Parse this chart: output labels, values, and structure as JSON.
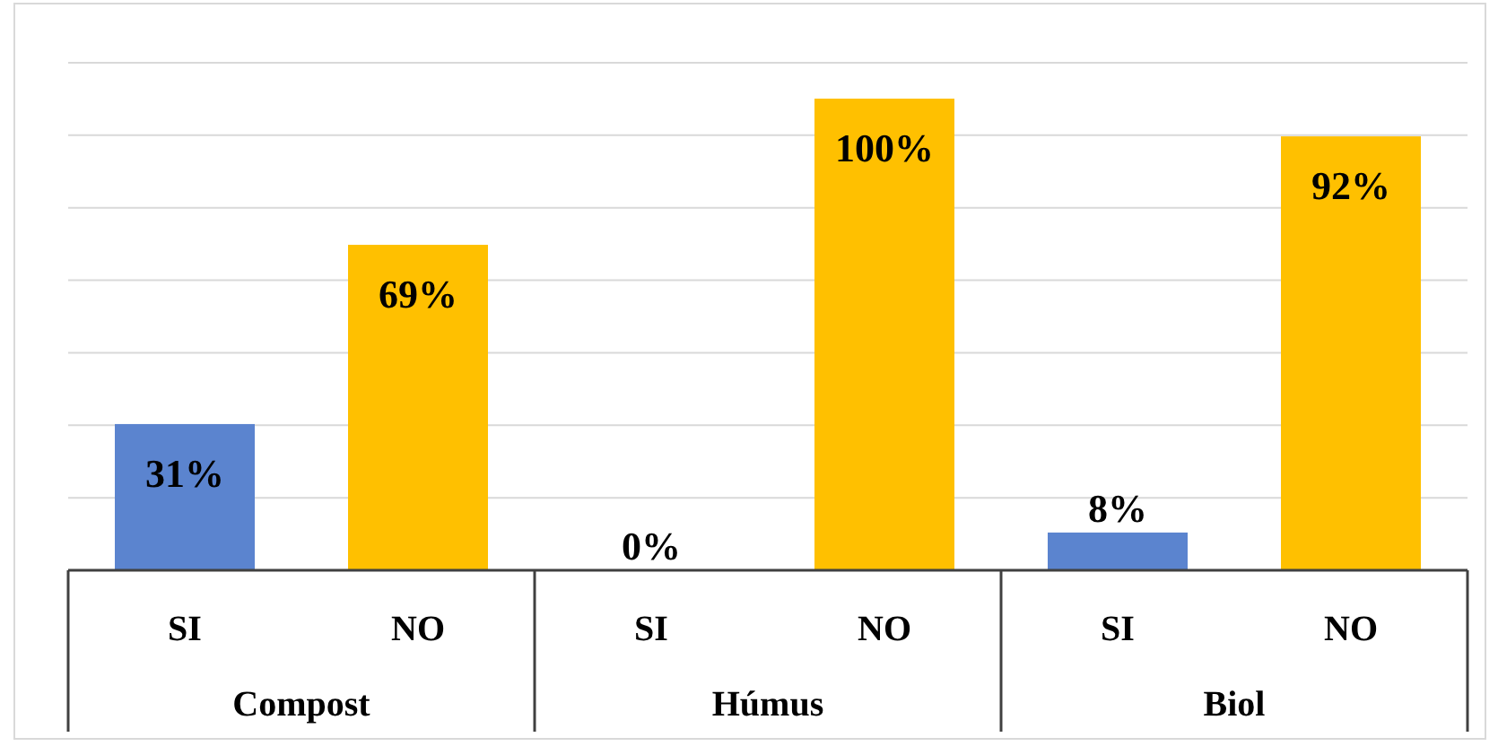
{
  "chart_data": {
    "type": "bar",
    "categories": [
      "SI",
      "NO",
      "SI",
      "NO",
      "SI",
      "NO"
    ],
    "values": [
      31,
      69,
      0,
      100,
      8,
      92
    ],
    "value_labels": [
      "31%",
      "69%",
      "0%",
      "100%",
      "8%",
      "92%"
    ],
    "colors": [
      "#5b84cf",
      "#ffc000",
      "#5b84cf",
      "#ffc000",
      "#5b84cf",
      "#ffc000"
    ],
    "annotations": [
      "Compost",
      "Húmus",
      "Biol"
    ],
    "grid": "y",
    "tick_labels": "x"
  }
}
